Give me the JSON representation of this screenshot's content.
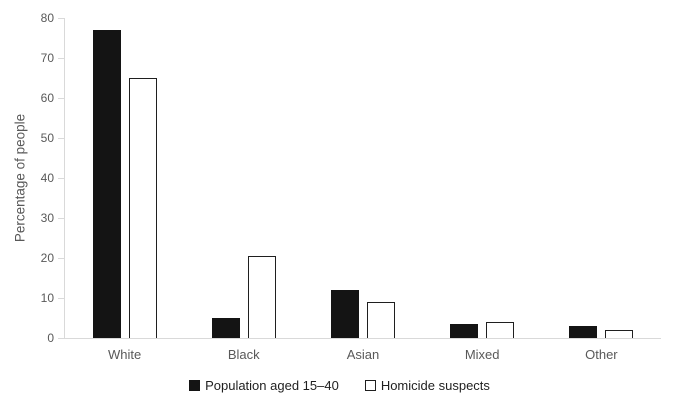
{
  "chart_data": {
    "type": "bar",
    "title": "",
    "xlabel": "",
    "ylabel": "Percentage of people",
    "categories": [
      "White",
      "Black",
      "Asian",
      "Mixed",
      "Other"
    ],
    "series": [
      {
        "name": "Population aged 15–40",
        "values": [
          77,
          5,
          12,
          3.5,
          3
        ]
      },
      {
        "name": "Homicide suspects",
        "values": [
          65,
          20.5,
          9,
          4,
          2
        ]
      }
    ],
    "ylim": [
      0,
      80
    ],
    "ytick_step": 10,
    "ytick_labels": [
      "0",
      "10",
      "20",
      "30",
      "40",
      "50",
      "60",
      "70",
      "80"
    ],
    "grid": false,
    "legend_position": "bottom-center"
  },
  "colors": {
    "bar_fill_population": "#141414",
    "bar_fill_homicide": "#ffffff",
    "bar_border_homicide": "#1f1f1f",
    "axis_line": "#d9d9d9",
    "tick_text": "#595959",
    "legend_text": "#1f1f1f"
  }
}
